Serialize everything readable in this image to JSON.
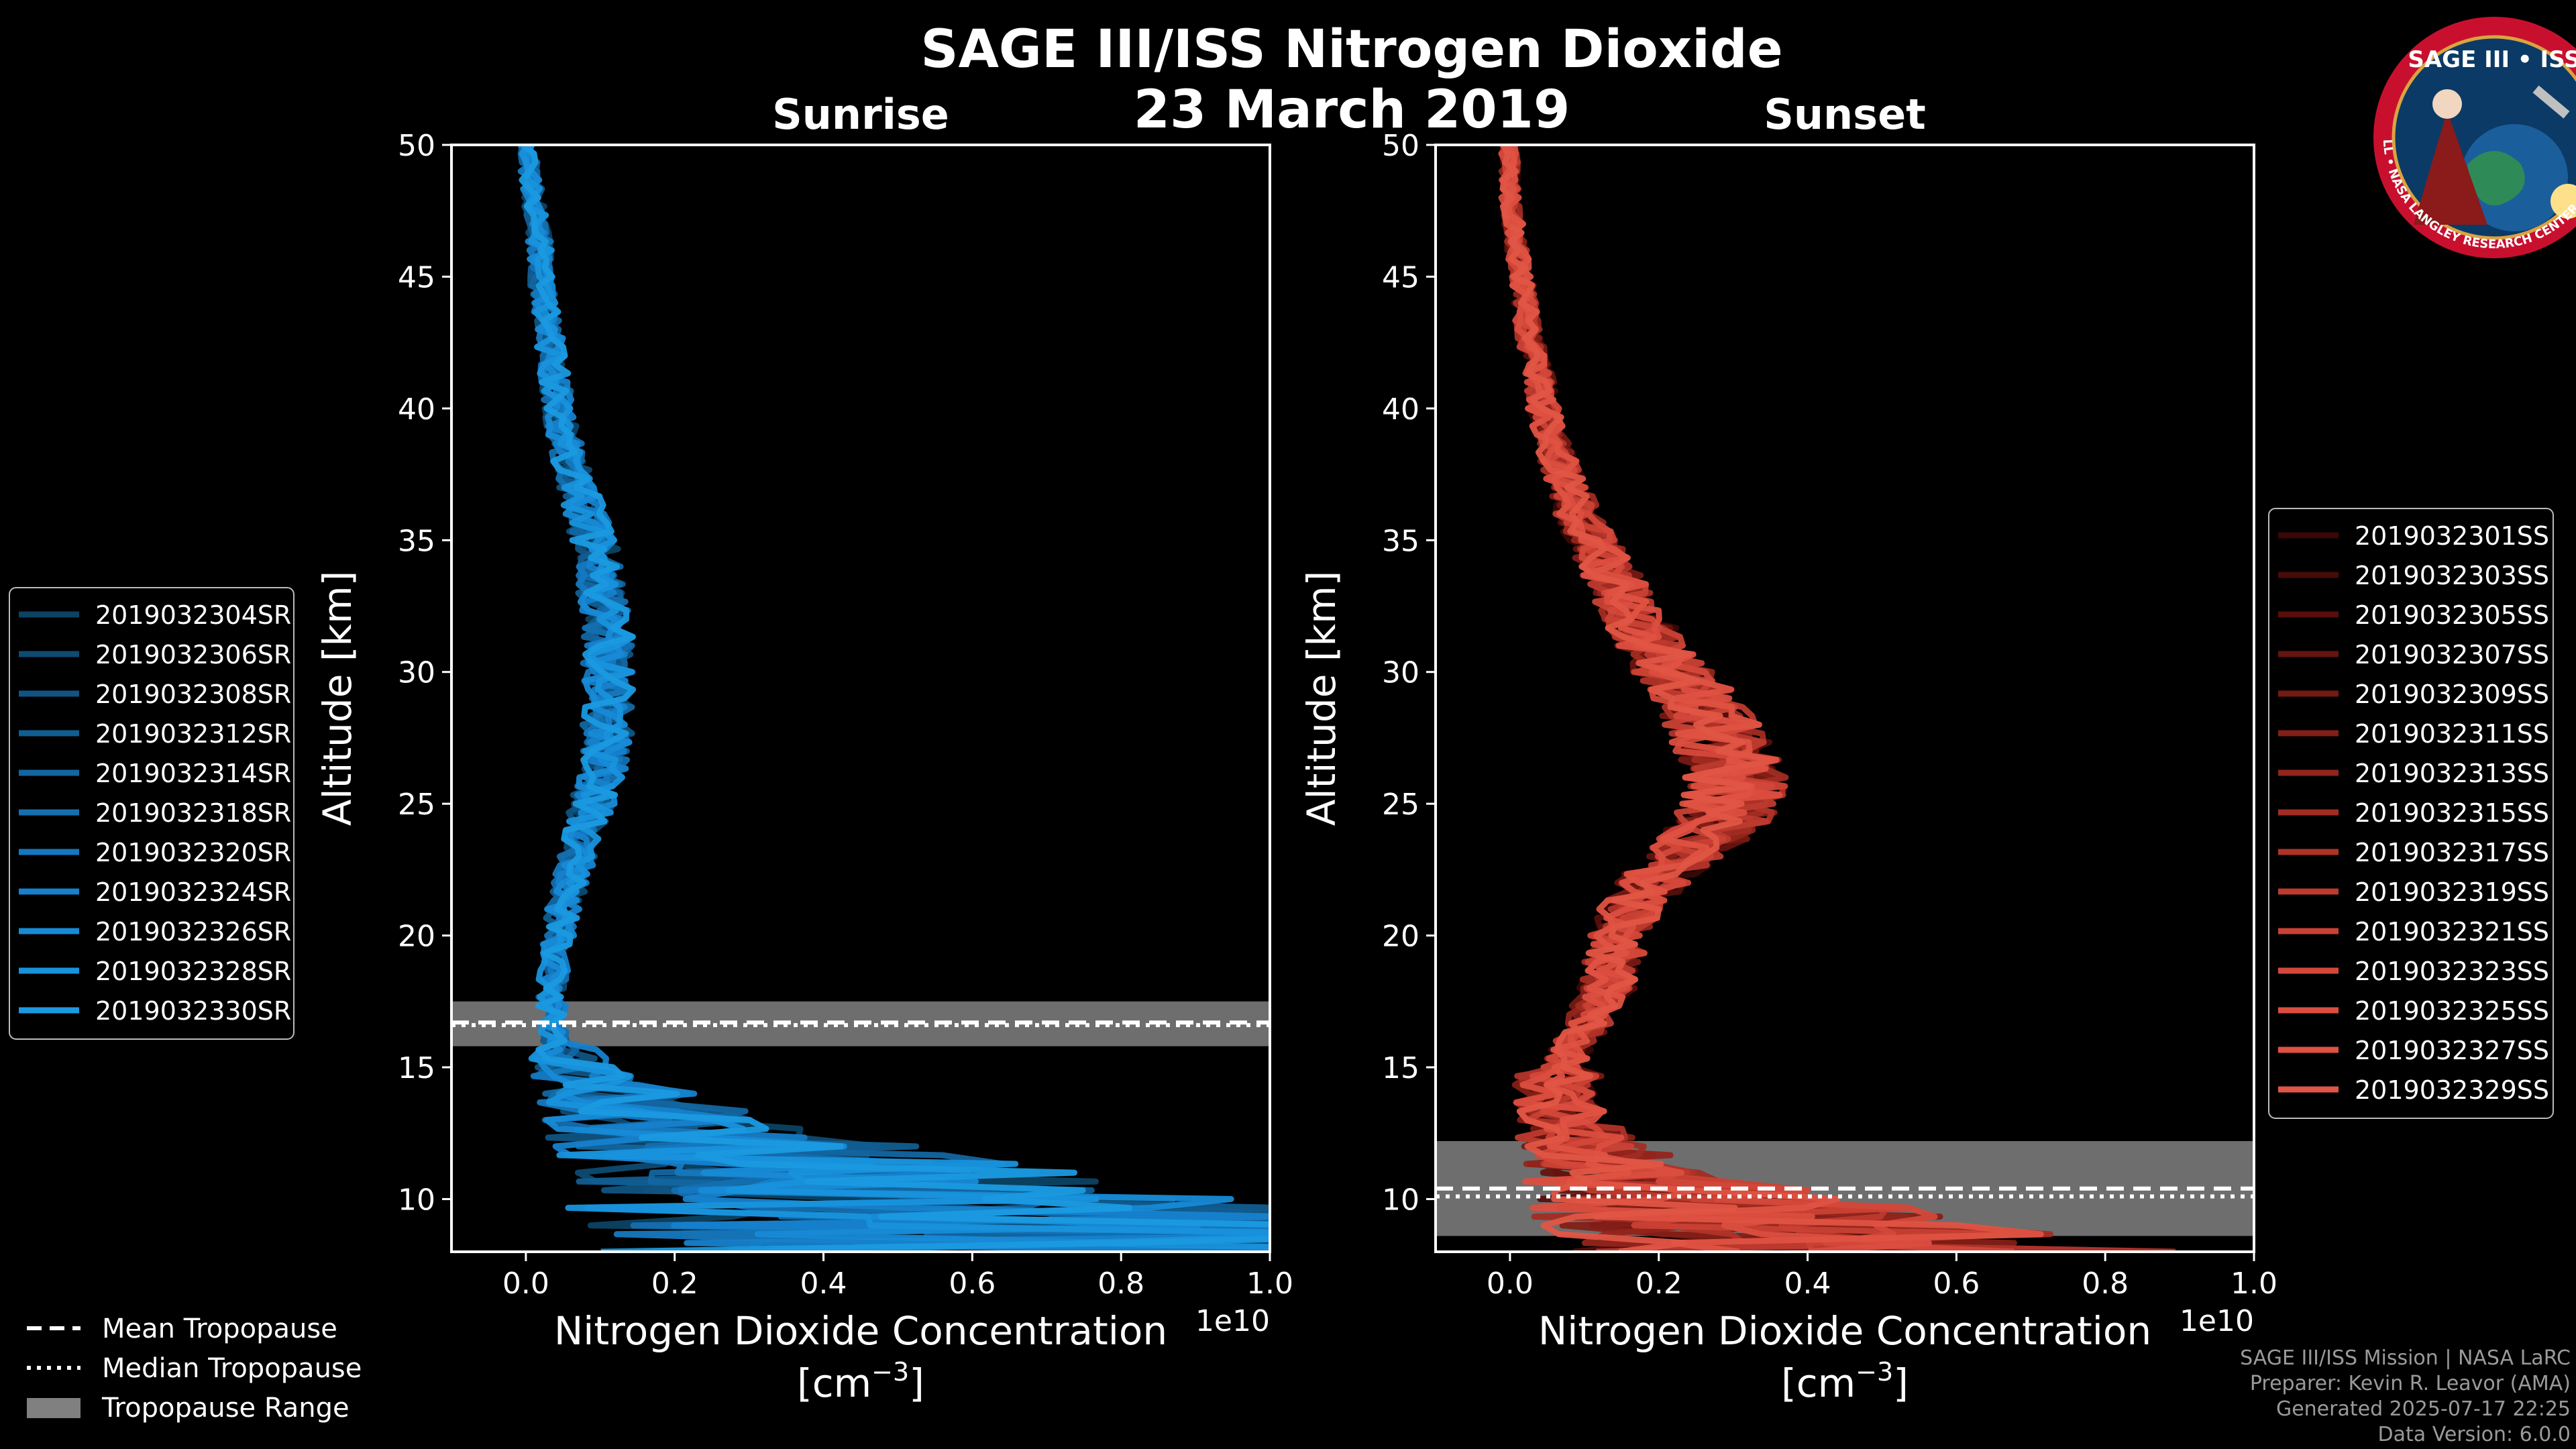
{
  "chart_data": {
    "type": "line",
    "title": "SAGE III/ISS Nitrogen Dioxide",
    "date": "23 March 2019",
    "logo": {
      "text": "SAGE III • ISS",
      "ring_text": "BALL • NASA LANGLEY RESEARCH CENTER • TAS-I • ESA",
      "colors": {
        "ring": "#c8102e",
        "disk": "#0b3a66",
        "inner": "#1b5e9c"
      }
    },
    "shared_legend": {
      "entries": [
        {
          "label": "Mean Tropopause",
          "style": "dashed"
        },
        {
          "label": "Median Tropopause",
          "style": "dotted"
        },
        {
          "label": "Tropopause Range",
          "style": "patch",
          "color": "#808080"
        }
      ]
    },
    "panels": [
      {
        "id": "sunrise",
        "title": "Sunrise",
        "xlabel_line1": "Nitrogen Dioxide Concentration",
        "xlabel_line2": "[cm",
        "xlabel_sup": "−3",
        "xlabel_close": "]",
        "ylabel": "Altitude [km]",
        "xlim": [
          -0.1,
          1.0
        ],
        "ylim": [
          8,
          50
        ],
        "x_scale_label": "1e10",
        "xticks": [
          0.0,
          0.2,
          0.4,
          0.6,
          0.8,
          1.0
        ],
        "xtick_labels": [
          "0.0",
          "0.2",
          "0.4",
          "0.6",
          "0.8",
          "1.0"
        ],
        "yticks": [
          10,
          15,
          20,
          25,
          30,
          35,
          40,
          45,
          50
        ],
        "ytick_labels": [
          "10",
          "15",
          "20",
          "25",
          "30",
          "35",
          "40",
          "45",
          "50"
        ],
        "tropopause": {
          "mean": 16.7,
          "median": 16.6,
          "range": [
            15.8,
            17.5
          ]
        },
        "base_color": "#1a9ae0",
        "profile": [
          [
            8,
            0.9
          ],
          [
            9,
            0.6
          ],
          [
            10,
            0.5
          ],
          [
            11,
            0.4
          ],
          [
            12,
            0.28
          ],
          [
            13,
            0.18
          ],
          [
            14,
            0.12
          ],
          [
            15,
            0.07
          ],
          [
            16,
            0.04
          ],
          [
            17,
            0.035
          ],
          [
            18,
            0.035
          ],
          [
            19,
            0.04
          ],
          [
            20,
            0.045
          ],
          [
            21,
            0.05
          ],
          [
            22,
            0.06
          ],
          [
            23,
            0.07
          ],
          [
            24,
            0.08
          ],
          [
            25,
            0.09
          ],
          [
            26,
            0.1
          ],
          [
            27,
            0.11
          ],
          [
            28,
            0.11
          ],
          [
            29,
            0.11
          ],
          [
            30,
            0.11
          ],
          [
            31,
            0.11
          ],
          [
            32,
            0.11
          ],
          [
            33,
            0.1
          ],
          [
            34,
            0.1
          ],
          [
            35,
            0.09
          ],
          [
            36,
            0.08
          ],
          [
            37,
            0.07
          ],
          [
            38,
            0.06
          ],
          [
            39,
            0.05
          ],
          [
            40,
            0.045
          ],
          [
            41,
            0.04
          ],
          [
            42,
            0.035
          ],
          [
            43,
            0.03
          ],
          [
            44,
            0.025
          ],
          [
            45,
            0.02
          ],
          [
            46,
            0.02
          ],
          [
            47,
            0.015
          ],
          [
            48,
            0.01
          ],
          [
            49,
            0.005
          ],
          [
            50,
            0.0
          ]
        ],
        "series": [
          {
            "name": "2019032304SR",
            "color": "#0c4263"
          },
          {
            "name": "2019032306SR",
            "color": "#0e4b72"
          },
          {
            "name": "2019032308SR",
            "color": "#105482"
          },
          {
            "name": "2019032312SR",
            "color": "#115d91"
          },
          {
            "name": "2019032314SR",
            "color": "#1366a1"
          },
          {
            "name": "2019032318SR",
            "color": "#146fb0"
          },
          {
            "name": "2019032320SR",
            "color": "#1578bf"
          },
          {
            "name": "2019032324SR",
            "color": "#1681cc"
          },
          {
            "name": "2019032326SR",
            "color": "#178ad6"
          },
          {
            "name": "2019032328SR",
            "color": "#1892dc"
          },
          {
            "name": "2019032330SR",
            "color": "#1a9ae0"
          }
        ]
      },
      {
        "id": "sunset",
        "title": "Sunset",
        "xlabel_line1": "Nitrogen Dioxide Concentration",
        "xlabel_line2": "[cm",
        "xlabel_sup": "−3",
        "xlabel_close": "]",
        "ylabel": "Altitude [km]",
        "xlim": [
          -0.1,
          1.0
        ],
        "ylim": [
          8,
          50
        ],
        "x_scale_label": "1e10",
        "xticks": [
          0.0,
          0.2,
          0.4,
          0.6,
          0.8,
          1.0
        ],
        "xtick_labels": [
          "0.0",
          "0.2",
          "0.4",
          "0.6",
          "0.8",
          "1.0"
        ],
        "yticks": [
          10,
          15,
          20,
          25,
          30,
          35,
          40,
          45,
          50
        ],
        "ytick_labels": [
          "10",
          "15",
          "20",
          "25",
          "30",
          "35",
          "40",
          "45",
          "50"
        ],
        "tropopause": {
          "mean": 10.4,
          "median": 10.1,
          "range": [
            8.6,
            12.2
          ]
        },
        "base_color": "#e05545",
        "profile": [
          [
            8,
            0.5
          ],
          [
            9,
            0.35
          ],
          [
            10,
            0.25
          ],
          [
            11,
            0.15
          ],
          [
            12,
            0.1
          ],
          [
            13,
            0.07
          ],
          [
            14,
            0.06
          ],
          [
            15,
            0.07
          ],
          [
            16,
            0.09
          ],
          [
            17,
            0.11
          ],
          [
            18,
            0.13
          ],
          [
            19,
            0.14
          ],
          [
            20,
            0.15
          ],
          [
            21,
            0.16
          ],
          [
            22,
            0.19
          ],
          [
            23,
            0.23
          ],
          [
            24,
            0.27
          ],
          [
            25,
            0.3
          ],
          [
            26,
            0.3
          ],
          [
            27,
            0.29
          ],
          [
            28,
            0.27
          ],
          [
            29,
            0.25
          ],
          [
            30,
            0.22
          ],
          [
            31,
            0.19
          ],
          [
            32,
            0.17
          ],
          [
            33,
            0.15
          ],
          [
            34,
            0.13
          ],
          [
            35,
            0.11
          ],
          [
            36,
            0.09
          ],
          [
            37,
            0.08
          ],
          [
            38,
            0.065
          ],
          [
            39,
            0.055
          ],
          [
            40,
            0.045
          ],
          [
            41,
            0.04
          ],
          [
            42,
            0.03
          ],
          [
            43,
            0.025
          ],
          [
            44,
            0.02
          ],
          [
            45,
            0.015
          ],
          [
            46,
            0.01
          ],
          [
            47,
            0.005
          ],
          [
            48,
            0.0
          ],
          [
            49,
            0.0
          ],
          [
            50,
            0.0
          ]
        ],
        "series": [
          {
            "name": "2019032301SS",
            "color": "#3a0806"
          },
          {
            "name": "2019032303SS",
            "color": "#470b08"
          },
          {
            "name": "2019032305SS",
            "color": "#560f0b"
          },
          {
            "name": "2019032307SS",
            "color": "#65140f"
          },
          {
            "name": "2019032309SS",
            "color": "#741913"
          },
          {
            "name": "2019032311SS",
            "color": "#831f17"
          },
          {
            "name": "2019032313SS",
            "color": "#92251c"
          },
          {
            "name": "2019032315SS",
            "color": "#a12c22"
          },
          {
            "name": "2019032317SS",
            "color": "#b03328"
          },
          {
            "name": "2019032319SS",
            "color": "#bd3a2e"
          },
          {
            "name": "2019032321SS",
            "color": "#c94134"
          },
          {
            "name": "2019032323SS",
            "color": "#d3483a"
          },
          {
            "name": "2019032325SS",
            "color": "#db4e3f"
          },
          {
            "name": "2019032327SS",
            "color": "#df5242"
          },
          {
            "name": "2019032329SS",
            "color": "#e05545"
          }
        ]
      }
    ]
  },
  "credits": {
    "line1": "SAGE III/ISS Mission | NASA LaRC",
    "line2": "Preparer: Kevin R. Leavor (AMA)",
    "line3": "Generated 2025-07-17 22:25",
    "line4": "Data Version: 6.0.0"
  }
}
